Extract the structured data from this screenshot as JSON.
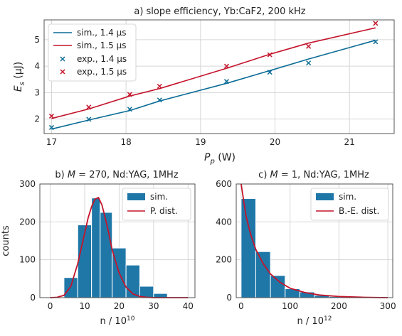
{
  "chart_data": [
    {
      "type": "line",
      "title": "a) slope efficiency, Yb:CaF2, 200 kHz",
      "xlabel_main": "P",
      "xlabel_sub": "p",
      "xlabel_unit": " (W)",
      "ylabel_main": "E",
      "ylabel_sub": "s",
      "ylabel_unit": " (μJ)",
      "xlim": [
        16.9,
        21.6
      ],
      "ylim": [
        1.45,
        5.75
      ],
      "xticks": [
        17,
        18,
        19,
        20,
        21
      ],
      "yticks": [
        2,
        3,
        4,
        5
      ],
      "grid": true,
      "legend_position": "upper-left",
      "colors": {
        "s14": "#0b6c96",
        "s15": "#c4142b"
      },
      "series": [
        {
          "name": "sim., 1.4 µs",
          "kind": "line",
          "color": "#0b6c96",
          "x": [
            17.0,
            17.5,
            18.05,
            18.45,
            19.35,
            19.93,
            20.45,
            21.35
          ],
          "y": [
            1.62,
            1.96,
            2.32,
            2.68,
            3.35,
            3.83,
            4.27,
            4.98
          ]
        },
        {
          "name": "sim., 1.5 µs",
          "kind": "line",
          "color": "#c4142b",
          "x": [
            17.0,
            17.5,
            18.05,
            18.45,
            19.35,
            19.93,
            20.45,
            21.35
          ],
          "y": [
            2.02,
            2.38,
            2.87,
            3.15,
            3.92,
            4.45,
            4.87,
            5.45
          ]
        },
        {
          "name": "exp., 1.4 µs",
          "kind": "marker",
          "color": "#0b6c96",
          "x": [
            17.0,
            17.5,
            18.05,
            18.45,
            19.35,
            19.93,
            20.45,
            21.35
          ],
          "y": [
            1.68,
            1.99,
            2.37,
            2.72,
            3.42,
            3.77,
            4.12,
            4.92
          ]
        },
        {
          "name": "exp., 1.5 µs",
          "kind": "marker",
          "color": "#c4142b",
          "x": [
            17.0,
            17.5,
            18.05,
            18.45,
            19.35,
            19.93,
            20.45,
            21.35
          ],
          "y": [
            2.11,
            2.45,
            2.93,
            3.24,
            4.0,
            4.43,
            4.75,
            5.62
          ]
        }
      ]
    },
    {
      "type": "bar",
      "title_pre": "b) ",
      "title_math": "M",
      "title_post": " = 270, Nd:YAG, 1MHz",
      "xlabel": "n / 10",
      "xlabel_exp": "10",
      "ylabel": "counts",
      "xlim": [
        -3,
        42
      ],
      "ylim": [
        0,
        300
      ],
      "xticks": [
        0,
        10,
        20,
        30,
        40
      ],
      "yticks": [
        0,
        100,
        200,
        300
      ],
      "grid": true,
      "legend_position": "upper-right",
      "bar_edges": [
        4,
        8,
        12,
        14.5,
        18,
        22,
        26,
        30,
        34
      ],
      "bar_values": [
        53,
        192,
        263,
        225,
        131,
        86,
        30,
        11,
        6
      ],
      "bar_name": "sim.",
      "bar_color": "#1f77a8",
      "curve_name": "P. dist.",
      "curve_color": "#c4142b",
      "curve": {
        "x": [
          0,
          2,
          4,
          6,
          8,
          10,
          11,
          12,
          13,
          14,
          15,
          16,
          17,
          18,
          20,
          22,
          24,
          26,
          28,
          30,
          34,
          40
        ],
        "y": [
          0,
          1,
          6,
          30,
          90,
          170,
          210,
          240,
          260,
          264,
          245,
          210,
          170,
          125,
          65,
          28,
          10,
          3,
          1,
          0,
          0,
          0
        ]
      }
    },
    {
      "type": "bar",
      "title_pre": "c) ",
      "title_math": "M",
      "title_post": " = 1, Nd:YAG, 1MHz",
      "xlabel": "n / 10",
      "xlabel_exp": "12",
      "ylabel": "",
      "xlim": [
        -10,
        310
      ],
      "ylim": [
        0,
        600
      ],
      "xticks": [
        0,
        100,
        200,
        300
      ],
      "yticks": [
        0,
        200,
        400,
        600
      ],
      "grid": true,
      "legend_position": "upper-right",
      "bar_edges": [
        0,
        30,
        60,
        90,
        120,
        150,
        180,
        210,
        240,
        270,
        300
      ],
      "bar_values": [
        523,
        243,
        117,
        47,
        30,
        12,
        6,
        3,
        1,
        0
      ],
      "bar_name": "sim.",
      "bar_color": "#1f77a8",
      "curve_name": "B.-E. dist.",
      "curve_color": "#c4142b",
      "curve": {
        "x": [
          0,
          10,
          20,
          30,
          45,
          60,
          80,
          100,
          130,
          160,
          200,
          250,
          300
        ],
        "y": [
          600,
          430,
          330,
          255,
          180,
          125,
          80,
          50,
          27,
          14,
          6,
          2,
          0
        ]
      }
    }
  ]
}
